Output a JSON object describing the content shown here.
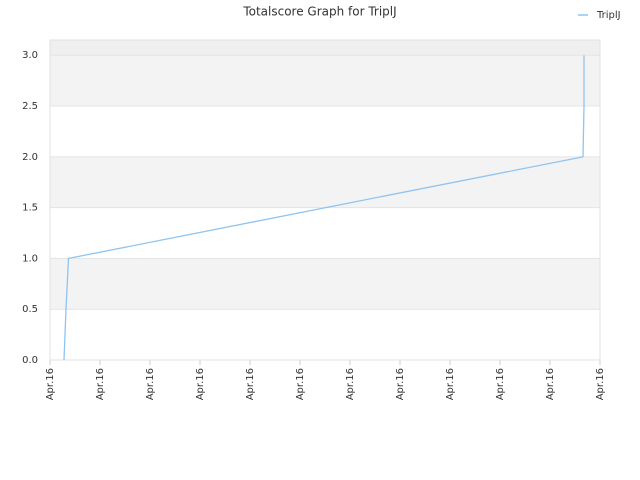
{
  "chart_data": {
    "type": "line",
    "title": "Totalscore Graph for TriplJ",
    "x": [
      0.28,
      0.32,
      0.37,
      10.66,
      10.68,
      10.68
    ],
    "series": [
      {
        "name": "TriplJ",
        "color": "#90c4f0",
        "values": [
          0,
          0.5,
          1,
          2,
          2.5,
          3
        ]
      }
    ],
    "xlim": [
      0,
      11
    ],
    "xticks": [
      {
        "value": 0,
        "label": "Apr.16"
      },
      {
        "value": 1,
        "label": "Apr.16"
      },
      {
        "value": 2,
        "label": "Apr.16"
      },
      {
        "value": 3,
        "label": "Apr.16"
      },
      {
        "value": 4,
        "label": "Apr.16"
      },
      {
        "value": 5,
        "label": "Apr.16"
      },
      {
        "value": 6,
        "label": "Apr.16"
      },
      {
        "value": 7,
        "label": "Apr.16"
      },
      {
        "value": 8,
        "label": "Apr.16"
      },
      {
        "value": 9,
        "label": "Apr.16"
      },
      {
        "value": 10,
        "label": "Apr.16"
      },
      {
        "value": 11,
        "label": "Apr.16"
      }
    ],
    "ylim": [
      0,
      3.15
    ],
    "yticks": [
      {
        "value": 0,
        "label": "0.0"
      },
      0.5,
      {
        "value": 1,
        "label": "1.0"
      },
      1.5,
      {
        "value": 2,
        "label": "2.0"
      },
      2.5,
      {
        "value": 3,
        "label": "3.0"
      }
    ],
    "grid": true,
    "legend": "top-right"
  }
}
